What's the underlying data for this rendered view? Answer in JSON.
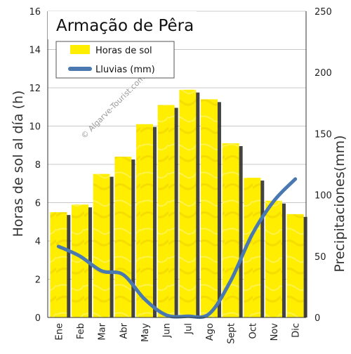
{
  "chart_data": {
    "type": "bar",
    "title": "Armação de Pêra",
    "categories": [
      "Ene",
      "Feb",
      "Mar",
      "Abr",
      "May",
      "Jun",
      "Jul",
      "Ago",
      "Sept",
      "Oct",
      "Nov",
      "Dic"
    ],
    "ylabel": "Horas de sol al día (h)",
    "ylim": [
      0,
      16
    ],
    "y_ticks": [
      0,
      2,
      4,
      6,
      8,
      10,
      12,
      14,
      16
    ],
    "y2label": "Precipitaciones(mm)",
    "y2lim": [
      0,
      250
    ],
    "y2_ticks": [
      0,
      50,
      100,
      150,
      200,
      250
    ],
    "grid": true,
    "legend_position": "top-left",
    "series": [
      {
        "name": "Horas de sol",
        "type": "bar",
        "axis": "left",
        "color": "#ffee00",
        "values": [
          5.5,
          5.9,
          7.5,
          8.4,
          10.1,
          11.1,
          11.9,
          11.4,
          9.1,
          7.3,
          6.1,
          5.4
        ]
      },
      {
        "name": "Lluvias (mm)",
        "type": "line",
        "axis": "right",
        "color": "#4a78b0",
        "values": [
          58,
          50,
          38,
          35,
          15,
          2,
          1,
          3,
          30,
          68,
          95,
          113
        ]
      }
    ]
  },
  "watermark": "© Algarve-Tourist.com",
  "colors": {
    "bar_fill": "#ffee00",
    "bar_shadow": "#222222",
    "line": "#4a78b0",
    "grid": "#c8c8c8"
  }
}
